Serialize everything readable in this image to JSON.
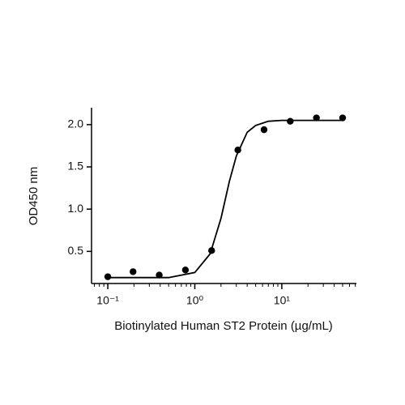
{
  "chart_data": {
    "type": "scatter",
    "x_label": "Biotinylated Human ST2 Protein (µg/mL)",
    "y_label": "OD450 nm",
    "log_x": true,
    "color": "#000000",
    "x": [
      0.1,
      0.195,
      0.39,
      0.78,
      1.56,
      3.125,
      6.25,
      12.5,
      25,
      50
    ],
    "values": [
      0.2,
      0.26,
      0.22,
      0.28,
      0.51,
      1.7,
      1.94,
      2.04,
      2.08,
      2.08
    ],
    "curve": {
      "x": [
        0.1,
        0.5,
        1,
        1.5,
        2,
        2.5,
        3,
        4,
        5,
        7,
        10,
        20,
        50
      ],
      "y": [
        0.19,
        0.19,
        0.25,
        0.47,
        0.89,
        1.33,
        1.63,
        1.91,
        1.99,
        2.04,
        2.05,
        2.05,
        2.05
      ]
    },
    "xlim": [
      0.065,
      72
    ],
    "ylim": [
      0.12,
      2.2
    ],
    "xticks": [
      {
        "value": 0.1,
        "label": "10⁻¹"
      },
      {
        "value": 1,
        "label": "10⁰"
      },
      {
        "value": 10,
        "label": "10¹"
      }
    ],
    "yticks": [
      0.5,
      {
        "value": 1,
        "label": "1.0"
      },
      1.5,
      {
        "value": 2,
        "label": "2.0"
      }
    ]
  }
}
